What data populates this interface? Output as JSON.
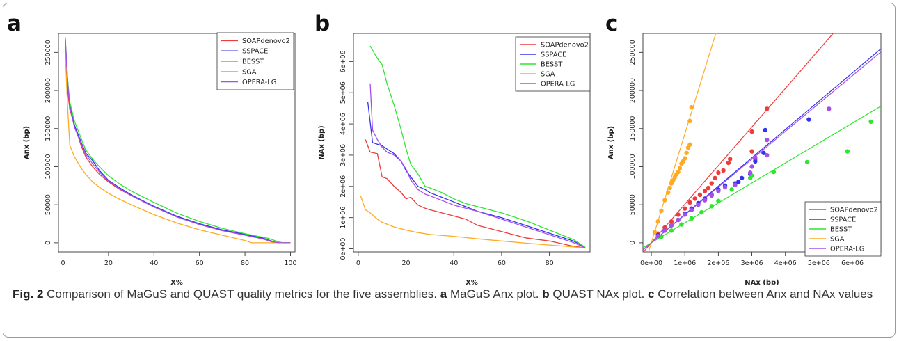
{
  "caption": {
    "fig_label": "Fig. 2",
    "text1": " Comparison of MaGuS and QUAST quality metrics for the five assemblies. ",
    "a_label": "a",
    "text2": " MaGuS Anx plot. ",
    "b_label": "b",
    "text3": " QUAST NAx plot. ",
    "c_label": "c",
    "text4": " Correlation between Anx and NAx values"
  },
  "colors": {
    "SOAPdenovo2": "#ee3b3b",
    "SSPACE": "#3333ee",
    "BESST": "#2ee62e",
    "SGA": "#ffaa22",
    "OPERA-LG": "#a64ee8"
  },
  "chart_data": [
    {
      "panel_label": "a",
      "type": "line",
      "xlabel": "X%",
      "ylabel": "Anx (bp)",
      "xlim": [
        -2,
        102
      ],
      "ylim": [
        -12000,
        275000
      ],
      "xticks": [
        0,
        20,
        40,
        60,
        80,
        100
      ],
      "xtick_labels": [
        "0",
        "20",
        "40",
        "60",
        "80",
        "100"
      ],
      "yticks": [
        0,
        50000,
        100000,
        150000,
        200000,
        250000
      ],
      "ytick_labels": [
        "0",
        "50000",
        "100000",
        "150000",
        "200000",
        "250000"
      ],
      "legend": [
        "SOAPdenovo2",
        "SSPACE",
        "BESST",
        "SGA",
        "OPERA-LG"
      ],
      "legend_position": "top-right",
      "series": [
        {
          "name": "SOAPdenovo2",
          "x": [
            1,
            2,
            3,
            5,
            8,
            10,
            13,
            16,
            20,
            25,
            30,
            40,
            50,
            60,
            70,
            80,
            88,
            92,
            94,
            100
          ],
          "y": [
            263000,
            200000,
            175000,
            155000,
            127000,
            113000,
            100000,
            90000,
            80000,
            70000,
            62000,
            47000,
            34000,
            24000,
            16000,
            10000,
            5000,
            1000,
            0,
            0
          ]
        },
        {
          "name": "SSPACE",
          "x": [
            1,
            2,
            3,
            5,
            8,
            10,
            13,
            16,
            20,
            25,
            30,
            40,
            50,
            60,
            70,
            80,
            88,
            93,
            95,
            100
          ],
          "y": [
            268000,
            215000,
            180000,
            155000,
            132000,
            118000,
            108000,
            95000,
            82000,
            72000,
            63000,
            48000,
            35000,
            25000,
            17000,
            11000,
            6000,
            1000,
            0,
            0
          ]
        },
        {
          "name": "BESST",
          "x": [
            1,
            2,
            3,
            5,
            8,
            10,
            13,
            16,
            20,
            25,
            30,
            40,
            50,
            60,
            70,
            80,
            90,
            95,
            97,
            100
          ],
          "y": [
            270000,
            215000,
            185000,
            160000,
            137000,
            122000,
            110000,
            100000,
            88000,
            77000,
            68000,
            53000,
            39000,
            28000,
            19000,
            12000,
            6000,
            1000,
            0,
            0
          ]
        },
        {
          "name": "SGA",
          "x": [
            1,
            2,
            3,
            5,
            8,
            10,
            13,
            16,
            20,
            25,
            30,
            40,
            50,
            60,
            70,
            80,
            83,
            90,
            100
          ],
          "y": [
            250000,
            180000,
            128000,
            113000,
            98000,
            90000,
            80000,
            73000,
            65000,
            57000,
            50000,
            37000,
            26000,
            17000,
            10000,
            3000,
            0,
            0,
            0
          ]
        },
        {
          "name": "OPERA-LG",
          "x": [
            1,
            2,
            3,
            5,
            8,
            10,
            13,
            16,
            20,
            25,
            30,
            40,
            50,
            60,
            70,
            80,
            88,
            93,
            95,
            100
          ],
          "y": [
            270000,
            212000,
            178000,
            152000,
            130000,
            116000,
            104000,
            93000,
            81000,
            71000,
            62000,
            47000,
            34000,
            24000,
            16000,
            10000,
            5000,
            1000,
            0,
            0
          ]
        }
      ]
    },
    {
      "panel_label": "b",
      "type": "line",
      "xlabel": "X%",
      "ylabel": "NAx (bp)",
      "xlim": [
        -2,
        97
      ],
      "ylim": [
        -100000,
        6900000
      ],
      "xticks": [
        0,
        20,
        40,
        60,
        80
      ],
      "xtick_labels": [
        "0",
        "20",
        "40",
        "60",
        "80"
      ],
      "yticks": [
        0,
        1000000,
        2000000,
        3000000,
        4000000,
        5000000,
        6000000
      ],
      "ytick_labels": [
        "0e+00",
        "1e+06",
        "2e+06",
        "3e+06",
        "4e+06",
        "5e+06",
        "6e+06"
      ],
      "legend": [
        "SOAPdenovo2",
        "SSPACE",
        "BESST",
        "SGA",
        "OPERA-LG"
      ],
      "legend_position": "top-right",
      "series": [
        {
          "name": "SOAPdenovo2",
          "x": [
            3,
            5,
            8,
            10,
            12,
            15,
            18,
            20,
            22,
            25,
            28,
            30,
            35,
            40,
            45,
            50,
            60,
            70,
            80,
            90,
            95
          ],
          "y": [
            3500000,
            3100000,
            3050000,
            2300000,
            2250000,
            2000000,
            1800000,
            1600000,
            1650000,
            1400000,
            1300000,
            1250000,
            1150000,
            1050000,
            950000,
            750000,
            550000,
            350000,
            250000,
            80000,
            30000
          ]
        },
        {
          "name": "SSPACE",
          "x": [
            4,
            6,
            8,
            10,
            12,
            15,
            18,
            20,
            22,
            25,
            28,
            30,
            35,
            40,
            45,
            50,
            60,
            70,
            80,
            90,
            95
          ],
          "y": [
            4700000,
            3400000,
            3350000,
            3300000,
            3200000,
            3050000,
            2800000,
            2500000,
            2300000,
            2000000,
            1900000,
            1800000,
            1650000,
            1500000,
            1350000,
            1200000,
            1000000,
            750000,
            500000,
            250000,
            50000
          ]
        },
        {
          "name": "BESST",
          "x": [
            5,
            8,
            10,
            12,
            15,
            18,
            20,
            22,
            25,
            28,
            30,
            35,
            40,
            45,
            50,
            60,
            70,
            80,
            90,
            95
          ],
          "y": [
            6500000,
            6100000,
            5900000,
            5300000,
            4600000,
            3800000,
            3200000,
            2700000,
            2400000,
            2000000,
            1950000,
            1800000,
            1600000,
            1450000,
            1350000,
            1150000,
            900000,
            600000,
            300000,
            50000
          ]
        },
        {
          "name": "SGA",
          "x": [
            1,
            3,
            5,
            8,
            10,
            15,
            20,
            25,
            30,
            40,
            50,
            60,
            70,
            80,
            90,
            95
          ],
          "y": [
            1700000,
            1250000,
            1150000,
            950000,
            850000,
            700000,
            600000,
            520000,
            460000,
            400000,
            320000,
            250000,
            180000,
            120000,
            60000,
            20000
          ]
        },
        {
          "name": "OPERA-LG",
          "x": [
            5,
            6,
            8,
            10,
            12,
            15,
            18,
            20,
            22,
            25,
            28,
            30,
            35,
            40,
            45,
            50,
            60,
            70,
            80,
            90,
            95
          ],
          "y": [
            5300000,
            3800000,
            3500000,
            3250000,
            3100000,
            3000000,
            2800000,
            2550000,
            2200000,
            1900000,
            1750000,
            1700000,
            1550000,
            1400000,
            1300000,
            1200000,
            950000,
            700000,
            450000,
            200000,
            30000
          ]
        }
      ]
    },
    {
      "panel_label": "c",
      "type": "scatter",
      "xlabel": "NAx (bp)",
      "ylabel": "Anx (bp)",
      "xlim": [
        -250000,
        6850000
      ],
      "ylim": [
        -12000,
        275000
      ],
      "xticks": [
        0,
        1000000,
        2000000,
        3000000,
        4000000,
        5000000,
        6000000
      ],
      "xtick_labels": [
        "0e+00",
        "1e+06",
        "2e+06",
        "3e+06",
        "4e+06",
        "5e+06",
        "6e+06"
      ],
      "yticks": [
        0,
        50000,
        100000,
        150000,
        200000,
        250000
      ],
      "ytick_labels": [
        "0",
        "50000",
        "100000",
        "150000",
        "200000",
        "250000"
      ],
      "legend": [
        "SOAPdenovo2",
        "SSPACE",
        "BESST",
        "SGA",
        "OPERA-LG"
      ],
      "legend_position": "bottom-right",
      "regression_lines": [
        {
          "name": "SOAPdenovo2",
          "slope": 0.0507,
          "intercept": 0
        },
        {
          "name": "SSPACE",
          "slope": 0.0372,
          "intercept": 0
        },
        {
          "name": "BESST",
          "slope": 0.0262,
          "intercept": 0
        },
        {
          "name": "SGA",
          "slope": 0.143,
          "intercept": 0
        },
        {
          "name": "OPERA-LG",
          "slope": 0.0366,
          "intercept": 0
        }
      ],
      "series": [
        {
          "name": "SOAPdenovo2",
          "x": [
            200000,
            400000,
            600000,
            800000,
            1000000,
            1150000,
            1300000,
            1450000,
            1600000,
            1700000,
            1800000,
            1900000,
            2000000,
            2150000,
            2300000,
            2350000,
            3000000,
            3000000,
            3100000,
            3450000
          ],
          "y": [
            12000,
            20000,
            28000,
            37000,
            45000,
            53000,
            58000,
            63000,
            68000,
            72000,
            78000,
            85000,
            92000,
            95000,
            105000,
            110000,
            120000,
            146000,
            110000,
            176000
          ]
        },
        {
          "name": "SSPACE",
          "x": [
            200000,
            400000,
            600000,
            800000,
            1000000,
            1200000,
            1400000,
            1600000,
            1800000,
            2000000,
            2200000,
            2500000,
            2600000,
            2700000,
            2950000,
            3100000,
            3350000,
            3400000,
            4700000
          ],
          "y": [
            10000,
            16000,
            23000,
            30000,
            38000,
            45000,
            52000,
            58000,
            63000,
            70000,
            75000,
            78000,
            80000,
            85000,
            90000,
            107000,
            118000,
            148000,
            162000
          ]
        },
        {
          "name": "BESST",
          "x": [
            300000,
            600000,
            900000,
            1200000,
            1500000,
            1800000,
            2000000,
            2400000,
            2950000,
            3000000,
            3650000,
            4650000,
            5850000,
            6550000
          ],
          "y": [
            8000,
            16000,
            24000,
            32000,
            40000,
            48000,
            55000,
            70000,
            85000,
            88000,
            93000,
            106000,
            120000,
            159000
          ]
        },
        {
          "name": "SGA",
          "x": [
            100000,
            200000,
            300000,
            400000,
            500000,
            550000,
            600000,
            650000,
            700000,
            750000,
            800000,
            850000,
            900000,
            950000,
            1000000,
            1050000,
            1100000,
            1150000,
            1150000,
            1200000
          ],
          "y": [
            14000,
            28000,
            42000,
            56000,
            66000,
            72000,
            78000,
            82000,
            86000,
            90000,
            93000,
            98000,
            104000,
            107000,
            111000,
            118000,
            125000,
            129000,
            160000,
            178000
          ]
        },
        {
          "name": "OPERA-LG",
          "x": [
            200000,
            400000,
            600000,
            800000,
            1000000,
            1200000,
            1400000,
            1600000,
            1800000,
            2000000,
            2200000,
            2500000,
            2950000,
            3000000,
            3100000,
            3450000,
            3450000,
            5300000
          ],
          "y": [
            9000,
            16000,
            23000,
            30000,
            37000,
            43000,
            50000,
            56000,
            62000,
            68000,
            73000,
            76000,
            92000,
            100000,
            112000,
            115000,
            135000,
            176000
          ]
        }
      ]
    }
  ]
}
